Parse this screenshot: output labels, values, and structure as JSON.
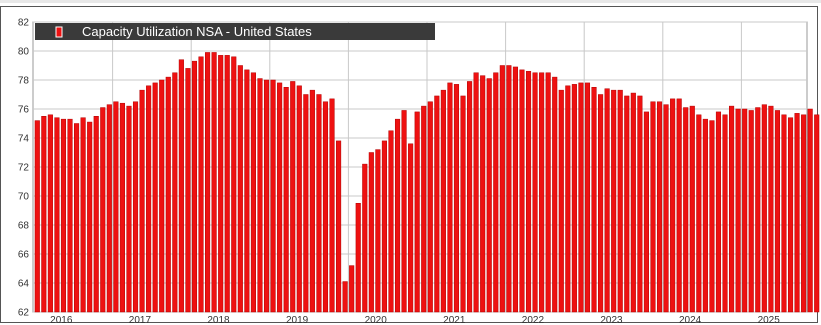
{
  "colors": {
    "bar": "#ee1111",
    "bar_edge": "#b30000",
    "grid": "#c8c8c8",
    "legend_bg": "#3a3a3a"
  },
  "chart_data": {
    "type": "bar",
    "title": "",
    "xlabel": "",
    "ylabel": "",
    "ylim": [
      62,
      82
    ],
    "yticks": [
      62,
      64,
      66,
      68,
      70,
      72,
      74,
      76,
      78,
      80,
      82
    ],
    "year_labels": [
      "2016",
      "2017",
      "2018",
      "2019",
      "2020",
      "2021",
      "2022",
      "2023",
      "2024",
      "2025"
    ],
    "grid": true,
    "legend": {
      "position": "top-left",
      "items": [
        "Capacity Utilization NSA - United States"
      ]
    },
    "series": [
      {
        "name": "Capacity Utilization NSA - United States",
        "start": "2016-01",
        "frequency": "monthly",
        "values": [
          75.2,
          75.5,
          75.6,
          75.4,
          75.3,
          75.3,
          75.0,
          75.4,
          75.1,
          75.5,
          76.1,
          76.3,
          76.5,
          76.4,
          76.2,
          76.5,
          77.3,
          77.6,
          77.8,
          78.0,
          78.2,
          78.5,
          79.4,
          78.8,
          79.3,
          79.6,
          79.9,
          79.9,
          79.7,
          79.7,
          79.6,
          79.0,
          78.7,
          78.5,
          78.1,
          78.0,
          78.0,
          77.8,
          77.5,
          77.9,
          77.6,
          77.0,
          77.3,
          77.0,
          76.5,
          76.7,
          73.8,
          64.1,
          65.2,
          69.5,
          72.2,
          73.0,
          73.2,
          73.8,
          74.5,
          75.3,
          75.9,
          73.6,
          75.8,
          76.2,
          76.5,
          76.9,
          77.3,
          77.8,
          77.7,
          76.9,
          77.9,
          78.5,
          78.3,
          78.1,
          78.5,
          79.0,
          79.0,
          78.9,
          78.7,
          78.6,
          78.5,
          78.5,
          78.5,
          78.2,
          77.3,
          77.6,
          77.7,
          77.8,
          77.8,
          77.5,
          77.0,
          77.4,
          77.3,
          77.3,
          76.9,
          77.1,
          76.9,
          75.8,
          76.5,
          76.5,
          76.3,
          76.7,
          76.7,
          76.1,
          76.2,
          75.6,
          75.3,
          75.2,
          75.8,
          75.6,
          76.2,
          76.0,
          76.0,
          75.9,
          76.1,
          76.3,
          76.2,
          75.9,
          75.6,
          75.4,
          75.7,
          75.6,
          76.0,
          75.6
        ]
      }
    ]
  }
}
